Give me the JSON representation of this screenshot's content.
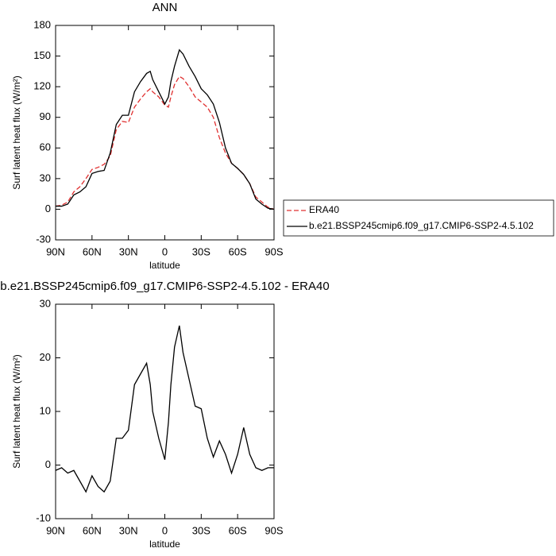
{
  "chart_data": [
    {
      "type": "line",
      "title": "ANN",
      "x_label": "latitude",
      "y_label": "Surf latent heat flux (W/m²)",
      "x": [
        90,
        85,
        80,
        75,
        70,
        65,
        60,
        55,
        50,
        45,
        40,
        35,
        30,
        25,
        20,
        15,
        12,
        10,
        5,
        0,
        -3,
        -5,
        -8,
        -12,
        -15,
        -20,
        -25,
        -30,
        -35,
        -40,
        -45,
        -50,
        -55,
        -60,
        -65,
        -70,
        -75,
        -80,
        -85,
        -90
      ],
      "series": [
        {
          "name": "ERA40",
          "color": "#e03030",
          "dashed": true,
          "values": [
            3,
            4,
            7,
            17,
            22,
            30,
            39,
            41,
            44,
            52,
            78,
            86,
            85,
            100,
            108,
            115,
            118,
            115,
            110,
            102,
            100,
            110,
            122,
            130,
            128,
            120,
            110,
            105,
            100,
            90,
            70,
            55,
            45,
            40,
            34,
            25,
            12,
            7,
            2,
            0
          ]
        },
        {
          "name": "b.e21.BSSP245cmip6.f09_g17.CMIP6-SSP2-4.5.102",
          "color": "#000000",
          "dashed": false,
          "values": [
            3,
            3,
            5,
            14,
            17,
            22,
            35,
            37,
            38,
            55,
            83,
            92,
            92,
            115,
            125,
            133,
            135,
            127,
            115,
            103,
            110,
            125,
            140,
            156,
            152,
            140,
            130,
            118,
            112,
            103,
            85,
            60,
            45,
            40,
            34,
            25,
            10,
            5,
            1,
            0
          ]
        }
      ],
      "xlim": [
        90,
        -90
      ],
      "xticks": [
        {
          "value": 90,
          "label": "90N"
        },
        {
          "value": 60,
          "label": "60N"
        },
        {
          "value": 30,
          "label": "30N"
        },
        0,
        {
          "value": -30,
          "label": "30S"
        },
        {
          "value": -60,
          "label": "60S"
        },
        {
          "value": -90,
          "label": "90S"
        }
      ],
      "ylim": [
        -30,
        180
      ],
      "yticks": [
        -30,
        0,
        30,
        60,
        90,
        120,
        150,
        180
      ],
      "legend": "right"
    },
    {
      "type": "line",
      "title": "b.e21.BSSP245cmip6.f09_g17.CMIP6-SSP2-4.5.102 - ERA40",
      "x_label": "latitude",
      "y_label": "Surf latent heat flux (W/m²)",
      "x": [
        90,
        85,
        80,
        75,
        70,
        65,
        60,
        55,
        50,
        45,
        40,
        35,
        30,
        25,
        20,
        15,
        12,
        10,
        5,
        0,
        -3,
        -5,
        -8,
        -12,
        -15,
        -20,
        -25,
        -30,
        -35,
        -40,
        -45,
        -50,
        -55,
        -60,
        -65,
        -70,
        -75,
        -80,
        -85,
        -90
      ],
      "series": [
        {
          "color": "#000000",
          "dashed": false,
          "values": [
            -1,
            -0.5,
            -1.5,
            -1,
            -3,
            -5,
            -2,
            -4,
            -5,
            -3,
            5,
            5,
            6.5,
            15,
            17,
            19,
            15,
            10,
            5,
            1,
            8,
            15,
            22,
            26,
            21,
            16,
            11,
            10.5,
            5,
            1.5,
            4.5,
            2,
            -1.5,
            2,
            7,
            2,
            -0.5,
            -1,
            -0.5,
            -0.5
          ]
        }
      ],
      "xlim": [
        90,
        -90
      ],
      "xticks": [
        {
          "value": 90,
          "label": "90N"
        },
        {
          "value": 60,
          "label": "60N"
        },
        {
          "value": 30,
          "label": "30N"
        },
        0,
        {
          "value": -30,
          "label": "30S"
        },
        {
          "value": -60,
          "label": "60S"
        },
        {
          "value": -90,
          "label": "90S"
        }
      ],
      "ylim": [
        -10,
        30
      ],
      "yticks": [
        -10,
        0,
        10,
        20,
        30
      ]
    }
  ]
}
